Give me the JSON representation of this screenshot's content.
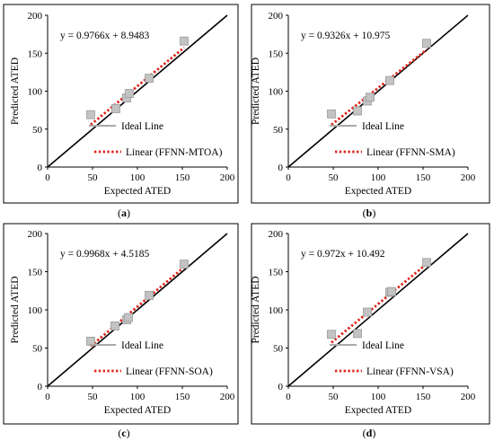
{
  "chart_data": [
    {
      "type": "scatter",
      "panel_label": "(a)",
      "equation": "y = 0.9766x + 8.9483",
      "xlabel": "Expected ATED",
      "ylabel": "Predicted ATED",
      "xlim": [
        0,
        200
      ],
      "ylim": [
        0,
        200
      ],
      "x_ticks": [
        "0",
        "50",
        "100",
        "150",
        "200"
      ],
      "y_ticks": [
        "0",
        "50",
        "100",
        "150",
        "200"
      ],
      "legend_ideal": "Ideal Line",
      "legend_linear": "Linear (FFNN-MTOA)",
      "trend": {
        "slope": 0.9766,
        "intercept": 8.9483
      },
      "points": [
        [
          48,
          69
        ],
        [
          76,
          77
        ],
        [
          88,
          91
        ],
        [
          91,
          97
        ],
        [
          113,
          117
        ],
        [
          152,
          166
        ]
      ]
    },
    {
      "type": "scatter",
      "panel_label": "(b)",
      "equation": "y = 0.9326x + 10.975",
      "xlabel": "Expected ATED",
      "ylabel": "Predicted ATED",
      "xlim": [
        0,
        200
      ],
      "ylim": [
        0,
        200
      ],
      "x_ticks": [
        "0",
        "50",
        "100",
        "150",
        "200"
      ],
      "y_ticks": [
        "0",
        "50",
        "100",
        "150",
        "200"
      ],
      "legend_ideal": "Ideal Line",
      "legend_linear": "Linear (FFNN-SMA)",
      "trend": {
        "slope": 0.9326,
        "intercept": 10.975
      },
      "points": [
        [
          48,
          70
        ],
        [
          77,
          74
        ],
        [
          88,
          87
        ],
        [
          91,
          92
        ],
        [
          113,
          114
        ],
        [
          154,
          163
        ]
      ]
    },
    {
      "type": "scatter",
      "panel_label": "(c)",
      "equation": "y = 0.9968x + 4.5185",
      "xlabel": "Expected ATED",
      "ylabel": "Predicted ATED",
      "xlim": [
        0,
        200
      ],
      "ylim": [
        0,
        200
      ],
      "x_ticks": [
        "0",
        "50",
        "100",
        "150",
        "200"
      ],
      "y_ticks": [
        "0",
        "50",
        "100",
        "150",
        "200"
      ],
      "legend_ideal": "Ideal Line",
      "legend_linear": "Linear (FFNN-SOA)",
      "trend": {
        "slope": 0.9968,
        "intercept": 4.5185
      },
      "points": [
        [
          48,
          59
        ],
        [
          75,
          79
        ],
        [
          88,
          87
        ],
        [
          90,
          90
        ],
        [
          113,
          119
        ],
        [
          152,
          160
        ]
      ]
    },
    {
      "type": "scatter",
      "panel_label": "(d)",
      "equation": "y = 0.972x + 10.492",
      "xlabel": "Expected ATED",
      "ylabel": "Predicted ATED",
      "xlim": [
        0,
        200
      ],
      "ylim": [
        0,
        200
      ],
      "x_ticks": [
        "0",
        "50",
        "100",
        "150",
        "200"
      ],
      "y_ticks": [
        "0",
        "50",
        "100",
        "150",
        "200"
      ],
      "legend_ideal": "Ideal Line",
      "legend_linear": "Linear (FFNN-VSA)",
      "trend": {
        "slope": 0.972,
        "intercept": 10.492
      },
      "points": [
        [
          48,
          68
        ],
        [
          77,
          69
        ],
        [
          88,
          97
        ],
        [
          113,
          123
        ],
        [
          115,
          124
        ],
        [
          154,
          162
        ]
      ]
    }
  ]
}
